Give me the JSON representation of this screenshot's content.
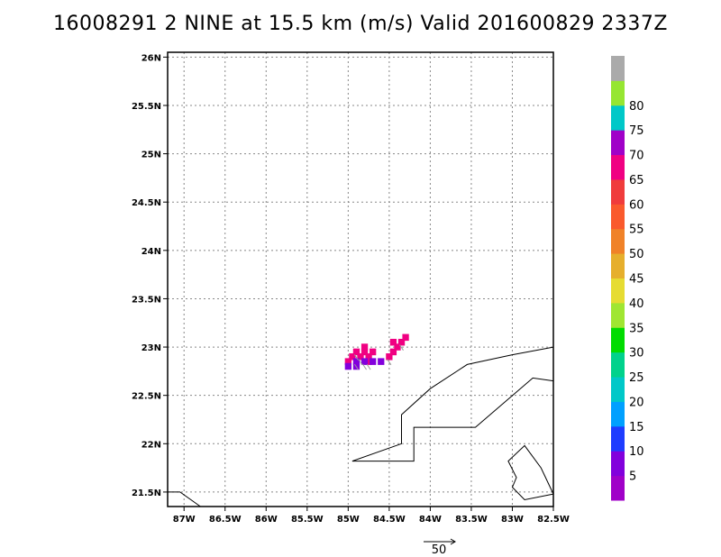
{
  "title": "16008291 2 NINE at 15.5 km (m/s) Valid 201600829 2337Z",
  "map": {
    "lon_range": [
      -87.2,
      -82.5
    ],
    "lat_range": [
      21.35,
      26.05
    ],
    "lon_ticks": [
      {
        "value": -87.0,
        "label": "87W"
      },
      {
        "value": -86.5,
        "label": "86.5W"
      },
      {
        "value": -86.0,
        "label": "86W"
      },
      {
        "value": -85.5,
        "label": "85.5W"
      },
      {
        "value": -85.0,
        "label": "85W"
      },
      {
        "value": -84.5,
        "label": "84.5W"
      },
      {
        "value": -84.0,
        "label": "84W"
      },
      {
        "value": -83.5,
        "label": "83.5W"
      },
      {
        "value": -83.0,
        "label": "83W"
      },
      {
        "value": -82.5,
        "label": "82.5W"
      }
    ],
    "lat_ticks": [
      {
        "value": 21.5,
        "label": "21.5N"
      },
      {
        "value": 22.0,
        "label": "22N"
      },
      {
        "value": 22.5,
        "label": "22.5N"
      },
      {
        "value": 23.0,
        "label": "23N"
      },
      {
        "value": 23.5,
        "label": "23.5N"
      },
      {
        "value": 24.0,
        "label": "24N"
      },
      {
        "value": 24.5,
        "label": "24.5N"
      },
      {
        "value": 25.0,
        "label": "25N"
      },
      {
        "value": 25.5,
        "label": "25.5N"
      },
      {
        "value": 26.0,
        "label": "26N"
      }
    ],
    "grid": "dotted",
    "coastlines": [
      [
        [
          -87.2,
          21.5
        ],
        [
          -87.05,
          21.5
        ],
        [
          -86.8,
          21.35
        ]
      ],
      [
        [
          -84.95,
          21.82
        ],
        [
          -84.35,
          22.0
        ],
        [
          -84.35,
          22.3
        ],
        [
          -84.0,
          22.57
        ],
        [
          -83.55,
          22.82
        ],
        [
          -83.0,
          22.92
        ],
        [
          -82.5,
          23.0
        ]
      ],
      [
        [
          -84.95,
          21.82
        ],
        [
          -84.2,
          21.82
        ],
        [
          -84.2,
          22.17
        ],
        [
          -83.45,
          22.17
        ],
        [
          -82.75,
          22.68
        ],
        [
          -82.5,
          22.65
        ]
      ],
      [
        [
          -82.5,
          21.48
        ],
        [
          -82.65,
          21.75
        ],
        [
          -82.85,
          21.98
        ],
        [
          -83.05,
          21.82
        ],
        [
          -82.95,
          21.65
        ],
        [
          -83.0,
          21.55
        ],
        [
          -82.85,
          21.42
        ],
        [
          -82.5,
          21.48
        ]
      ]
    ]
  },
  "wind_cells": [
    {
      "lon": -84.9,
      "lat": 22.95,
      "value": 66
    },
    {
      "lon": -84.8,
      "lat": 23.0,
      "value": 66
    },
    {
      "lon": -84.8,
      "lat": 22.95,
      "value": 68
    },
    {
      "lon": -84.85,
      "lat": 22.9,
      "value": 67
    },
    {
      "lon": -84.75,
      "lat": 22.9,
      "value": 66
    },
    {
      "lon": -84.7,
      "lat": 22.95,
      "value": 66
    },
    {
      "lon": -84.75,
      "lat": 22.85,
      "value": 67
    },
    {
      "lon": -84.95,
      "lat": 22.9,
      "value": 68
    },
    {
      "lon": -85.0,
      "lat": 22.85,
      "value": 68
    },
    {
      "lon": -84.9,
      "lat": 22.85,
      "value": 9
    },
    {
      "lon": -85.0,
      "lat": 22.8,
      "value": 9
    },
    {
      "lon": -84.9,
      "lat": 22.8,
      "value": 9
    },
    {
      "lon": -84.8,
      "lat": 22.85,
      "value": 9
    },
    {
      "lon": -84.7,
      "lat": 22.85,
      "value": 9
    },
    {
      "lon": -84.6,
      "lat": 22.85,
      "value": 9
    },
    {
      "lon": -84.5,
      "lat": 22.9,
      "value": 67
    },
    {
      "lon": -84.45,
      "lat": 22.95,
      "value": 66
    },
    {
      "lon": -84.4,
      "lat": 23.0,
      "value": 66
    },
    {
      "lon": -84.35,
      "lat": 23.05,
      "value": 66
    },
    {
      "lon": -84.3,
      "lat": 23.1,
      "value": 66
    },
    {
      "lon": -84.45,
      "lat": 23.05,
      "value": 67
    }
  ],
  "vector_reference": {
    "label": "50"
  },
  "colorbar": {
    "levels": [
      {
        "label": "",
        "color": "#a000c8"
      },
      {
        "label": "5",
        "color": "#8200dc"
      },
      {
        "label": "10",
        "color": "#1e3cff"
      },
      {
        "label": "15",
        "color": "#00a0ff"
      },
      {
        "label": "20",
        "color": "#00c8c8"
      },
      {
        "label": "25",
        "color": "#00d28c"
      },
      {
        "label": "30",
        "color": "#00dc00"
      },
      {
        "label": "35",
        "color": "#a0e632"
      },
      {
        "label": "40",
        "color": "#e6dc32"
      },
      {
        "label": "45",
        "color": "#e6af2d"
      },
      {
        "label": "50",
        "color": "#f08228"
      },
      {
        "label": "55",
        "color": "#fa5a2d"
      },
      {
        "label": "60",
        "color": "#f03c3c"
      },
      {
        "label": "65",
        "color": "#f00082"
      },
      {
        "label": "70",
        "color": "#a000c8"
      },
      {
        "label": "75",
        "color": "#00c8c8"
      },
      {
        "label": "80",
        "color": "#96e632"
      },
      {
        "label": "",
        "color": "#aaaaaa"
      }
    ]
  }
}
